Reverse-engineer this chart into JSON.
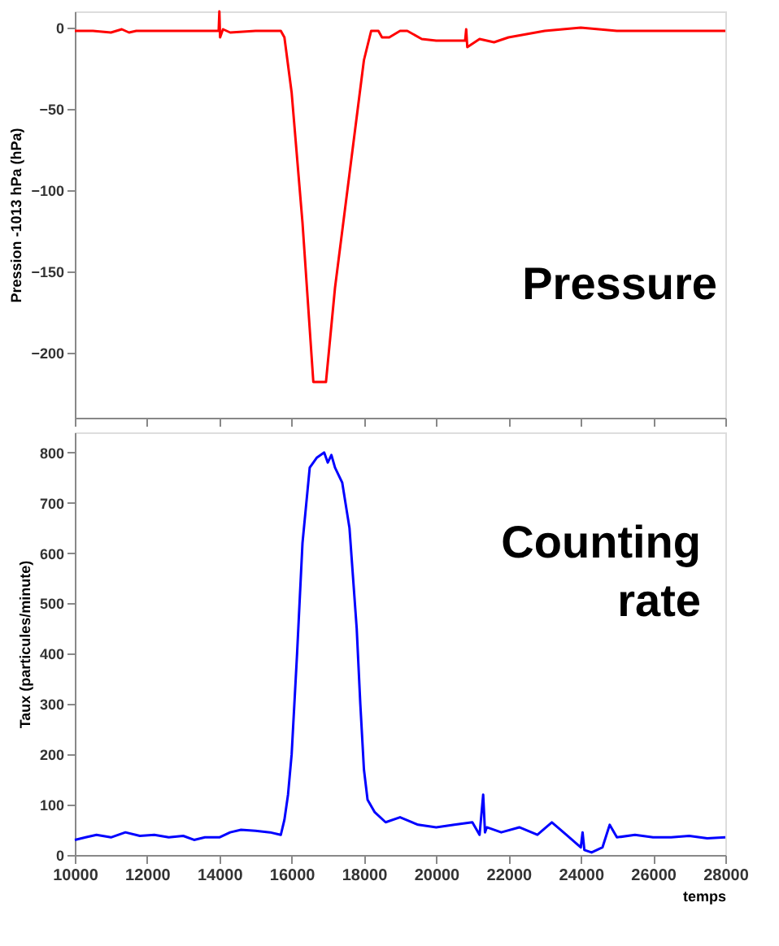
{
  "chart_data": [
    {
      "type": "line",
      "ylabel": "Pression -1013 hPa (hPa)",
      "annotations": [
        "Pressure"
      ],
      "tick_labels": "y",
      "grid": false,
      "marker": "none",
      "line_style": "solid",
      "xlim": [
        10000,
        28000
      ],
      "xticks": [
        10000,
        12000,
        14000,
        16000,
        18000,
        20000,
        22000,
        24000,
        26000,
        28000
      ],
      "ylim": [
        -240,
        10
      ],
      "yticks": [
        -200,
        -150,
        -100,
        -50,
        0
      ],
      "series": [
        {
          "color": "#ff0000",
          "x": [
            10000,
            10500,
            11000,
            11300,
            11500,
            11700,
            12000,
            13000,
            13980,
            14000,
            14020,
            14100,
            14300,
            15000,
            15600,
            15700,
            15800,
            16000,
            16300,
            16600,
            16950,
            17200,
            17600,
            18000,
            18200,
            18400,
            18500,
            18700,
            19000,
            19200,
            19600,
            20000,
            20500,
            20800,
            20830,
            20860,
            21200,
            21600,
            22000,
            22500,
            23000,
            23500,
            24000,
            24500,
            25000,
            26000,
            27000,
            28000
          ],
          "values": [
            -2,
            -2,
            -3,
            -1,
            -3,
            -2,
            -2,
            -2,
            -2,
            10,
            -6,
            -1,
            -3,
            -2,
            -2,
            -2,
            -6,
            -40,
            -120,
            -218,
            -218,
            -160,
            -90,
            -20,
            -2,
            -2,
            -6,
            -6,
            -2,
            -2,
            -7,
            -8,
            -8,
            -8,
            -1,
            -12,
            -7,
            -9,
            -6,
            -4,
            -2,
            -1,
            0,
            -1,
            -2,
            -2,
            -2,
            -2
          ]
        }
      ]
    },
    {
      "type": "line",
      "ylabel": "Taux (particules/minute)",
      "xlabel": "temps",
      "annotations": [
        "Counting rate"
      ],
      "grid": false,
      "marker": "none",
      "line_style": "solid",
      "xlim": [
        10000,
        28000
      ],
      "xticks": [
        10000,
        12000,
        14000,
        16000,
        18000,
        20000,
        22000,
        24000,
        26000,
        28000
      ],
      "ylim": [
        0,
        840
      ],
      "yticks": [
        0,
        100,
        200,
        300,
        400,
        500,
        600,
        700,
        800
      ],
      "series": [
        {
          "color": "#0000ff",
          "x": [
            10000,
            10300,
            10600,
            11000,
            11400,
            11800,
            12200,
            12600,
            13000,
            13300,
            13600,
            14000,
            14300,
            14600,
            15000,
            15400,
            15700,
            15800,
            15900,
            16000,
            16150,
            16300,
            16500,
            16700,
            16900,
            17000,
            17100,
            17200,
            17400,
            17600,
            17800,
            17900,
            18000,
            18100,
            18300,
            18600,
            19000,
            19500,
            20000,
            20500,
            21000,
            21200,
            21300,
            21350,
            21400,
            21800,
            22300,
            22800,
            23200,
            23600,
            24000,
            24050,
            24100,
            24300,
            24600,
            24800,
            25000,
            25500,
            26000,
            26500,
            27000,
            27500,
            28000
          ],
          "values": [
            30,
            35,
            40,
            35,
            45,
            38,
            40,
            35,
            38,
            30,
            35,
            35,
            45,
            50,
            48,
            45,
            40,
            70,
            120,
            200,
            400,
            620,
            770,
            790,
            800,
            780,
            795,
            770,
            740,
            650,
            450,
            300,
            170,
            110,
            85,
            65,
            75,
            60,
            55,
            60,
            65,
            40,
            120,
            45,
            55,
            45,
            55,
            40,
            65,
            40,
            15,
            45,
            10,
            5,
            15,
            60,
            35,
            40,
            35,
            35,
            38,
            33,
            35
          ]
        }
      ]
    }
  ]
}
